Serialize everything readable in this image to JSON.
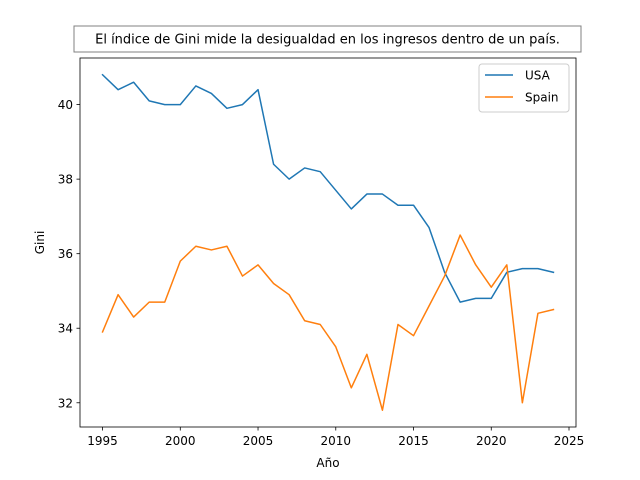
{
  "chart_data": {
    "type": "line",
    "title": "El índice de Gini mide la desigualdad en los ingresos dentro de un país.",
    "xlabel": "Año",
    "ylabel": "Gini",
    "xlim": [
      1993.55,
      2025.45
    ],
    "ylim": [
      31.35,
      41.25
    ],
    "xticks": [
      1995,
      2000,
      2005,
      2010,
      2015,
      2020,
      2025
    ],
    "yticks": [
      32,
      34,
      36,
      38,
      40
    ],
    "grid": false,
    "legend_position": "top-right",
    "x": [
      1995,
      1996,
      1997,
      1998,
      1999,
      2000,
      2001,
      2002,
      2003,
      2004,
      2005,
      2006,
      2007,
      2008,
      2009,
      2010,
      2011,
      2012,
      2013,
      2014,
      2015,
      2016,
      2017,
      2018,
      2019,
      2020,
      2021,
      2022,
      2023,
      2024
    ],
    "series": [
      {
        "name": "USA",
        "color": "#1f77b4",
        "values": [
          40.8,
          40.4,
          40.6,
          40.1,
          40.0,
          40.0,
          40.5,
          40.3,
          39.9,
          40.0,
          40.4,
          38.4,
          38.0,
          38.3,
          38.2,
          37.7,
          37.2,
          37.6,
          37.6,
          37.3,
          37.3,
          36.7,
          35.5,
          34.7,
          34.8,
          34.8,
          35.5,
          35.6,
          35.6,
          35.5
        ]
      },
      {
        "name": "Spain",
        "color": "#ff7f0e",
        "values": [
          33.9,
          34.9,
          34.3,
          34.7,
          34.7,
          35.8,
          36.2,
          36.1,
          36.2,
          35.4,
          35.7,
          35.2,
          34.9,
          34.2,
          34.1,
          33.5,
          32.4,
          33.3,
          31.8,
          34.1,
          33.8,
          34.6,
          35.4,
          36.5,
          35.7,
          35.1,
          35.7,
          32.0,
          34.4,
          34.5
        ]
      }
    ]
  }
}
